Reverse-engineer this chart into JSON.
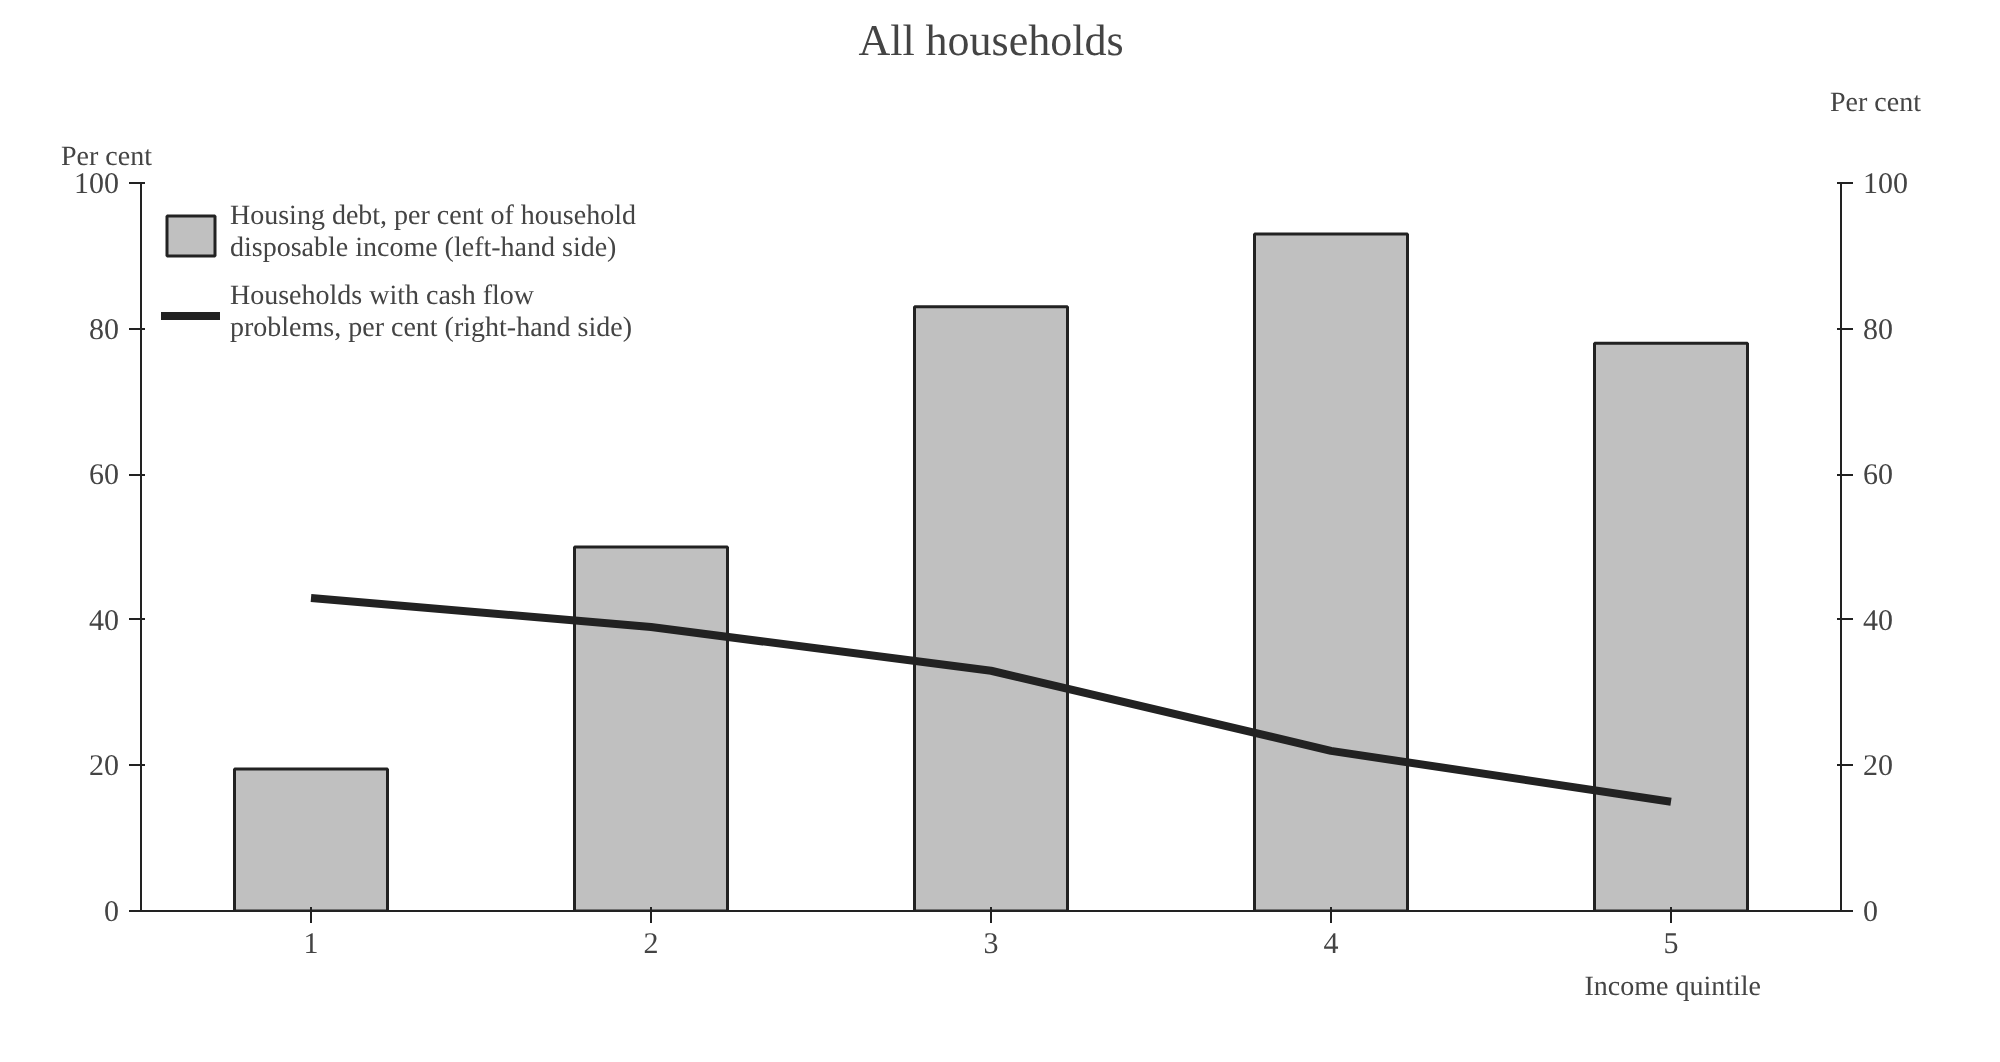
{
  "chart_data": {
    "type": "bar",
    "title": "All households",
    "ylabel": "Per cent",
    "y2label": "Per cent",
    "xlabel": "Income quintile",
    "categories": [
      "1",
      "2",
      "3",
      "4",
      "5"
    ],
    "series": [
      {
        "name": "Housing debt, per cent of household\ndisposable income (left-hand side)",
        "color": "#c0c0c0",
        "values": [
          19.5,
          50,
          83,
          93,
          78
        ]
      },
      {
        "name": "Households with cash flow\nproblems, per cent (right-hand side)",
        "type": "line",
        "color": "#222222",
        "values": [
          43,
          39,
          33,
          22,
          15
        ]
      }
    ],
    "ylim": [
      0,
      100
    ],
    "yticks": [
      0,
      20,
      40,
      60,
      80,
      100
    ],
    "y2lim": [
      0,
      100
    ],
    "y2ticks": [
      0,
      20,
      40,
      60,
      80,
      100
    ],
    "grid": false,
    "legend": "top left",
    "marker": "none",
    "line_style": "solid"
  }
}
